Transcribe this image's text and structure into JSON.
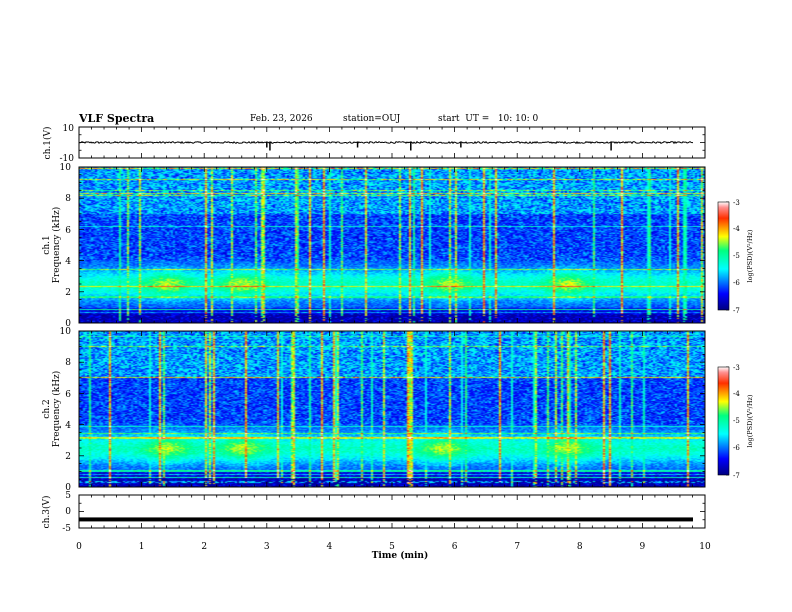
{
  "header": {
    "title": "VLF Spectra",
    "date": "Feb. 23, 2026",
    "station": "station=OUJ",
    "start": "start  UT =   10: 10: 0"
  },
  "chart_data": [
    {
      "type": "line",
      "name": "ch.1 waveform",
      "ylabel": "ch.1(V)",
      "ylim": [
        -10,
        10
      ],
      "yticks": [
        "10",
        "-10"
      ],
      "xlim": [
        0,
        10
      ],
      "baseline_v": 0,
      "spikes_min": [
        3.0,
        3.05,
        4.45,
        5.3,
        6.1,
        8.5
      ]
    },
    {
      "type": "heatmap",
      "name": "ch.1 spectrogram",
      "ylabel_line1": "ch.1",
      "ylabel_line2": "Frequency (kHz)",
      "ylim": [
        0,
        10
      ],
      "yticks": [
        "0",
        "2",
        "4",
        "6",
        "8",
        "10"
      ],
      "xlim": [
        0,
        10
      ],
      "colorbar": {
        "label": "log(PSD)(V²/Hz)",
        "ticks": [
          "-3",
          "-4",
          "-5",
          "-6",
          "-7"
        ],
        "range": [
          -7,
          -3
        ]
      },
      "intense_band_khz": [
        1.5,
        3.5
      ],
      "peak_times_min": [
        1.4,
        2.6,
        5.9,
        7.8
      ]
    },
    {
      "type": "heatmap",
      "name": "ch.2 spectrogram",
      "ylabel_line1": "ch.2",
      "ylabel_line2": "Frequency (kHz)",
      "ylim": [
        0,
        10
      ],
      "yticks": [
        "0",
        "2",
        "4",
        "6",
        "8",
        "10"
      ],
      "xlim": [
        0,
        10
      ],
      "colorbar": {
        "label": "log(PSD)(V²/Hz)",
        "ticks": [
          "-3",
          "-4",
          "-5",
          "-6",
          "-7"
        ],
        "range": [
          -7,
          -3
        ]
      },
      "intense_band_khz": [
        1.5,
        3.5
      ],
      "peak_times_min": [
        1.4,
        2.6,
        5.8,
        7.8
      ]
    },
    {
      "type": "line",
      "name": "ch.3 waveform",
      "ylabel": "ch.3(V)",
      "ylim": [
        -5,
        5
      ],
      "yticks": [
        "5",
        "0",
        "-5"
      ],
      "xlim": [
        0,
        10
      ],
      "baseline_v": -2.4
    }
  ],
  "xaxis": {
    "label": "Time (min)",
    "ticks": [
      "0",
      "1",
      "2",
      "3",
      "4",
      "5",
      "6",
      "7",
      "8",
      "9",
      "10"
    ]
  }
}
